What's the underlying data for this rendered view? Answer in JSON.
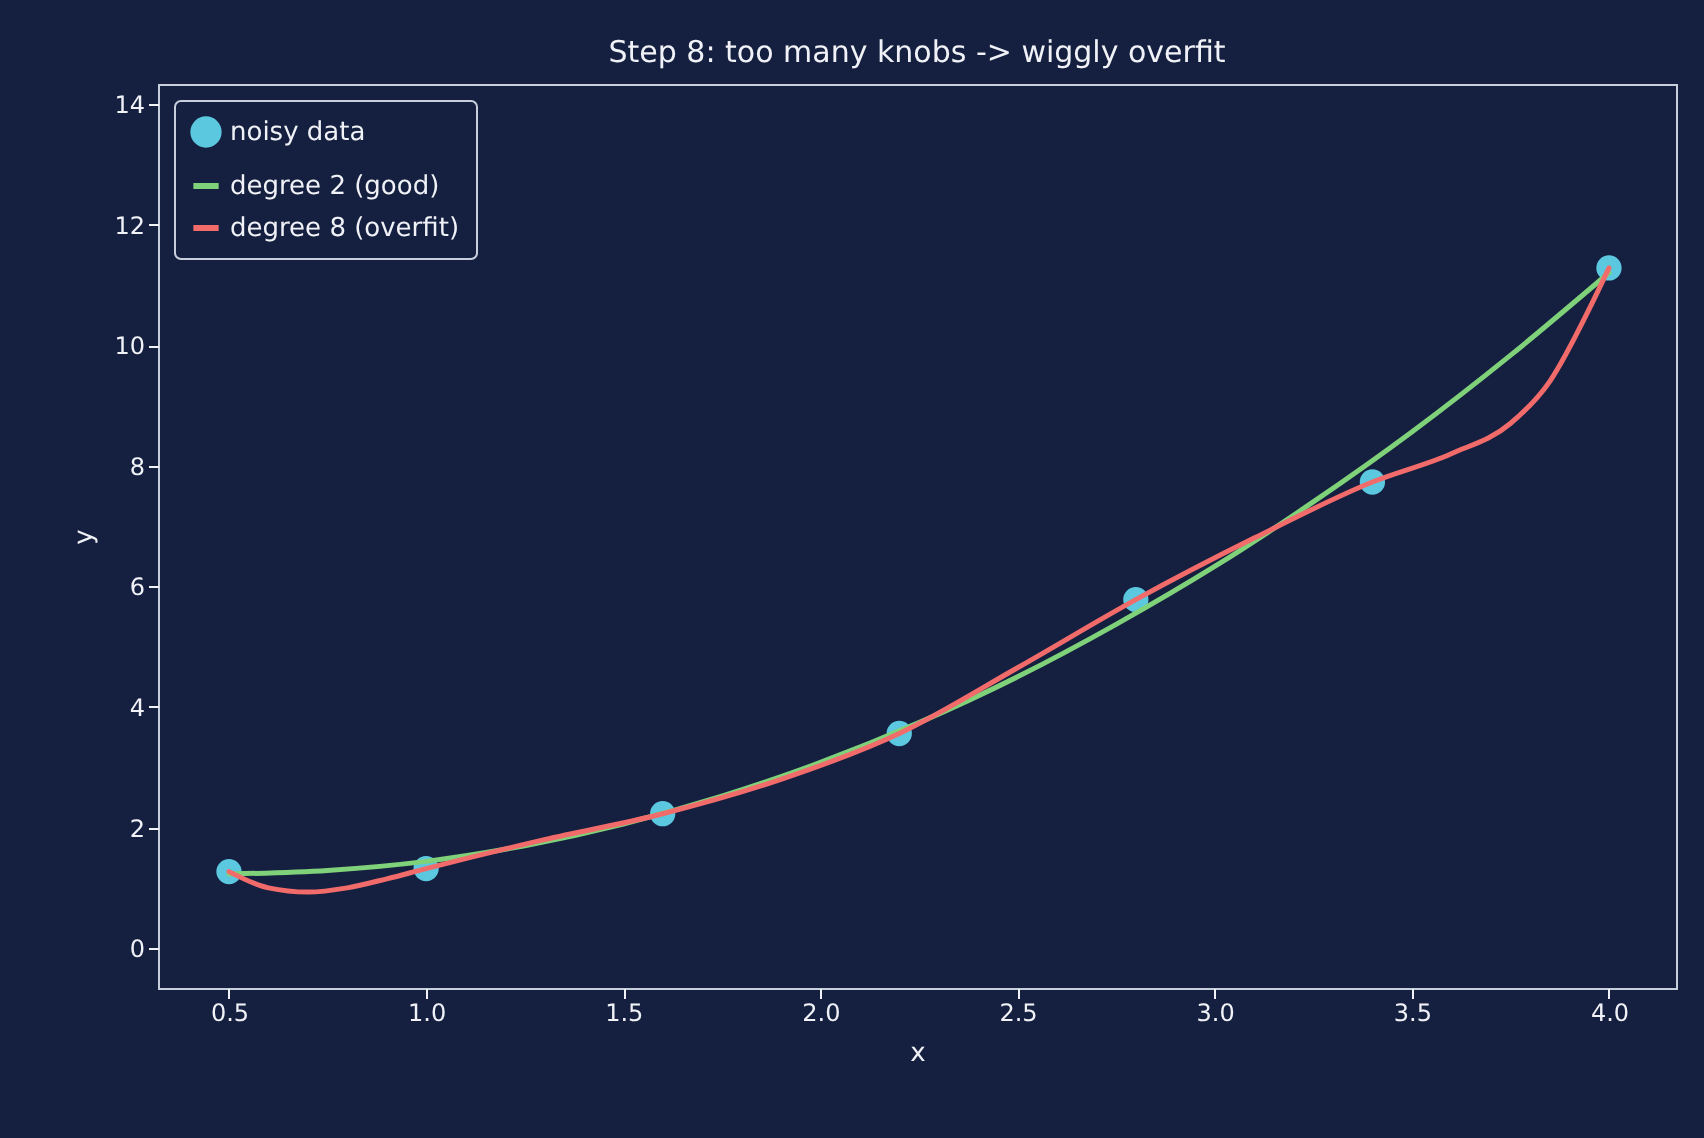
{
  "chart_data": {
    "type": "scatter",
    "title": "Step 8: too many knobs -> wiggly overfit",
    "xlabel": "x",
    "ylabel": "y",
    "xlim": [
      0.32,
      4.17
    ],
    "ylim": [
      -0.66,
      14.33
    ],
    "xticks": [
      {
        "value": 0.5,
        "label": "0.5"
      },
      {
        "value": 1,
        "label": "1.0"
      },
      {
        "value": 1.5,
        "label": "1.5"
      },
      {
        "value": 2,
        "label": "2.0"
      },
      {
        "value": 2.5,
        "label": "2.5"
      },
      {
        "value": 3,
        "label": "3.0"
      },
      {
        "value": 3.5,
        "label": "3.5"
      },
      {
        "value": 4,
        "label": "4.0"
      }
    ],
    "yticks": [
      0,
      2,
      4,
      6,
      8,
      10,
      12,
      14
    ],
    "grid": false,
    "legend": "top left",
    "series": [
      {
        "name": "noisy data",
        "color": "#5bc8e0",
        "marker": "circle",
        "x": [
          0.5,
          1.0,
          1.6,
          2.2,
          2.8,
          3.4,
          4.0
        ],
        "values": [
          1.27,
          1.32,
          2.23,
          3.56,
          5.78,
          7.73,
          11.28
        ]
      },
      {
        "name": "degree 2 (good)",
        "type": "line",
        "color": "#7fd17a",
        "line_style": "solid",
        "x": [
          0.5,
          0.75,
          1.0,
          1.25,
          1.5,
          1.75,
          2.0,
          2.25,
          2.5,
          2.75,
          3.0,
          3.25,
          3.5,
          3.75,
          4.0
        ],
        "values": [
          1.23,
          1.29,
          1.44,
          1.7,
          2.06,
          2.52,
          3.08,
          3.74,
          4.5,
          5.37,
          6.33,
          7.4,
          8.56,
          9.83,
          11.2
        ]
      },
      {
        "name": "degree 8 (overfit)",
        "type": "line",
        "color": "#f26b6b",
        "line_style": "solid",
        "x": [
          0.5,
          0.6,
          0.7,
          0.8,
          0.9,
          1.0,
          1.3,
          1.6,
          1.9,
          2.2,
          2.5,
          2.8,
          3.1,
          3.4,
          3.6,
          3.75,
          3.85,
          3.95,
          4.0
        ],
        "values": [
          1.27,
          1.0,
          0.93,
          1.0,
          1.15,
          1.32,
          1.8,
          2.23,
          2.8,
          3.56,
          4.65,
          5.78,
          6.8,
          7.73,
          8.2,
          8.7,
          9.4,
          10.6,
          11.28
        ]
      }
    ]
  }
}
